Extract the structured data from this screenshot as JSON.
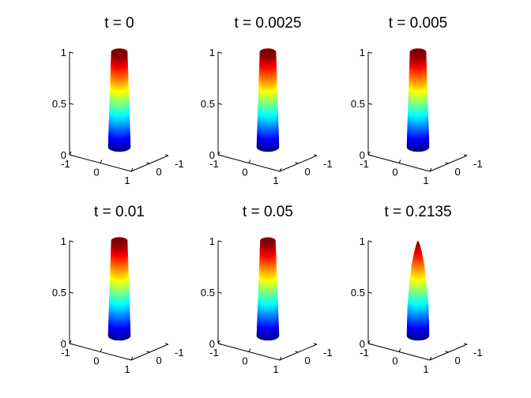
{
  "chart_data": [
    {
      "type": "surface",
      "title": "t = 0",
      "zticks": [
        "0",
        "0.5",
        "1"
      ],
      "xticks": [
        "-1",
        "0",
        "1"
      ],
      "yticks": [
        "0",
        "-1"
      ],
      "zlim": [
        0,
        1
      ],
      "xlim": [
        -1,
        1
      ],
      "ylim": [
        -1,
        1
      ],
      "colormap": "jet",
      "profile": [
        [
          0,
          1.0
        ],
        [
          1,
          0.72
        ]
      ]
    },
    {
      "type": "surface",
      "title": "t = 0.0025",
      "zticks": [
        "0",
        "0.5",
        "1"
      ],
      "xticks": [
        "-1",
        "0",
        "1"
      ],
      "yticks": [
        "0",
        "-1"
      ],
      "zlim": [
        0,
        1
      ],
      "xlim": [
        -1,
        1
      ],
      "ylim": [
        -1,
        1
      ],
      "colormap": "jet",
      "profile": [
        [
          0,
          1.0
        ],
        [
          1,
          0.72
        ]
      ]
    },
    {
      "type": "surface",
      "title": "t = 0.005",
      "zticks": [
        "0",
        "0.5",
        "1"
      ],
      "xticks": [
        "-1",
        "0",
        "1"
      ],
      "yticks": [
        "0",
        "-1"
      ],
      "zlim": [
        0,
        1
      ],
      "xlim": [
        -1,
        1
      ],
      "ylim": [
        -1,
        1
      ],
      "colormap": "jet",
      "profile": [
        [
          0,
          1.0
        ],
        [
          1,
          0.72
        ]
      ]
    },
    {
      "type": "surface",
      "title": "t = 0.01",
      "zticks": [
        "0",
        "0.5",
        "1"
      ],
      "xticks": [
        "-1",
        "0",
        "1"
      ],
      "yticks": [
        "0",
        "-1"
      ],
      "zlim": [
        0,
        1
      ],
      "xlim": [
        -1,
        1
      ],
      "ylim": [
        -1,
        1
      ],
      "colormap": "jet",
      "profile": [
        [
          0,
          1.0
        ],
        [
          1,
          0.72
        ]
      ]
    },
    {
      "type": "surface",
      "title": "t = 0.05",
      "zticks": [
        "0",
        "0.5",
        "1"
      ],
      "xticks": [
        "-1",
        "0",
        "1"
      ],
      "yticks": [
        "0",
        "-1"
      ],
      "zlim": [
        0,
        1
      ],
      "xlim": [
        -1,
        1
      ],
      "ylim": [
        -1,
        1
      ],
      "colormap": "jet",
      "profile": [
        [
          0,
          1.0
        ],
        [
          1,
          0.68
        ]
      ]
    },
    {
      "type": "surface",
      "title": "t = 0.2135",
      "zticks": [
        "0",
        "0.5",
        "1"
      ],
      "xticks": [
        "-1",
        "0",
        "1"
      ],
      "yticks": [
        "0",
        "-1"
      ],
      "zlim": [
        0,
        1
      ],
      "xlim": [
        -1,
        1
      ],
      "ylim": [
        -1,
        1
      ],
      "colormap": "jet",
      "profile": [
        [
          0,
          1.0
        ],
        [
          0.3,
          0.93
        ],
        [
          0.55,
          0.76
        ],
        [
          0.75,
          0.55
        ],
        [
          0.88,
          0.33
        ],
        [
          0.96,
          0.15
        ],
        [
          1.0,
          0.0
        ]
      ]
    }
  ]
}
